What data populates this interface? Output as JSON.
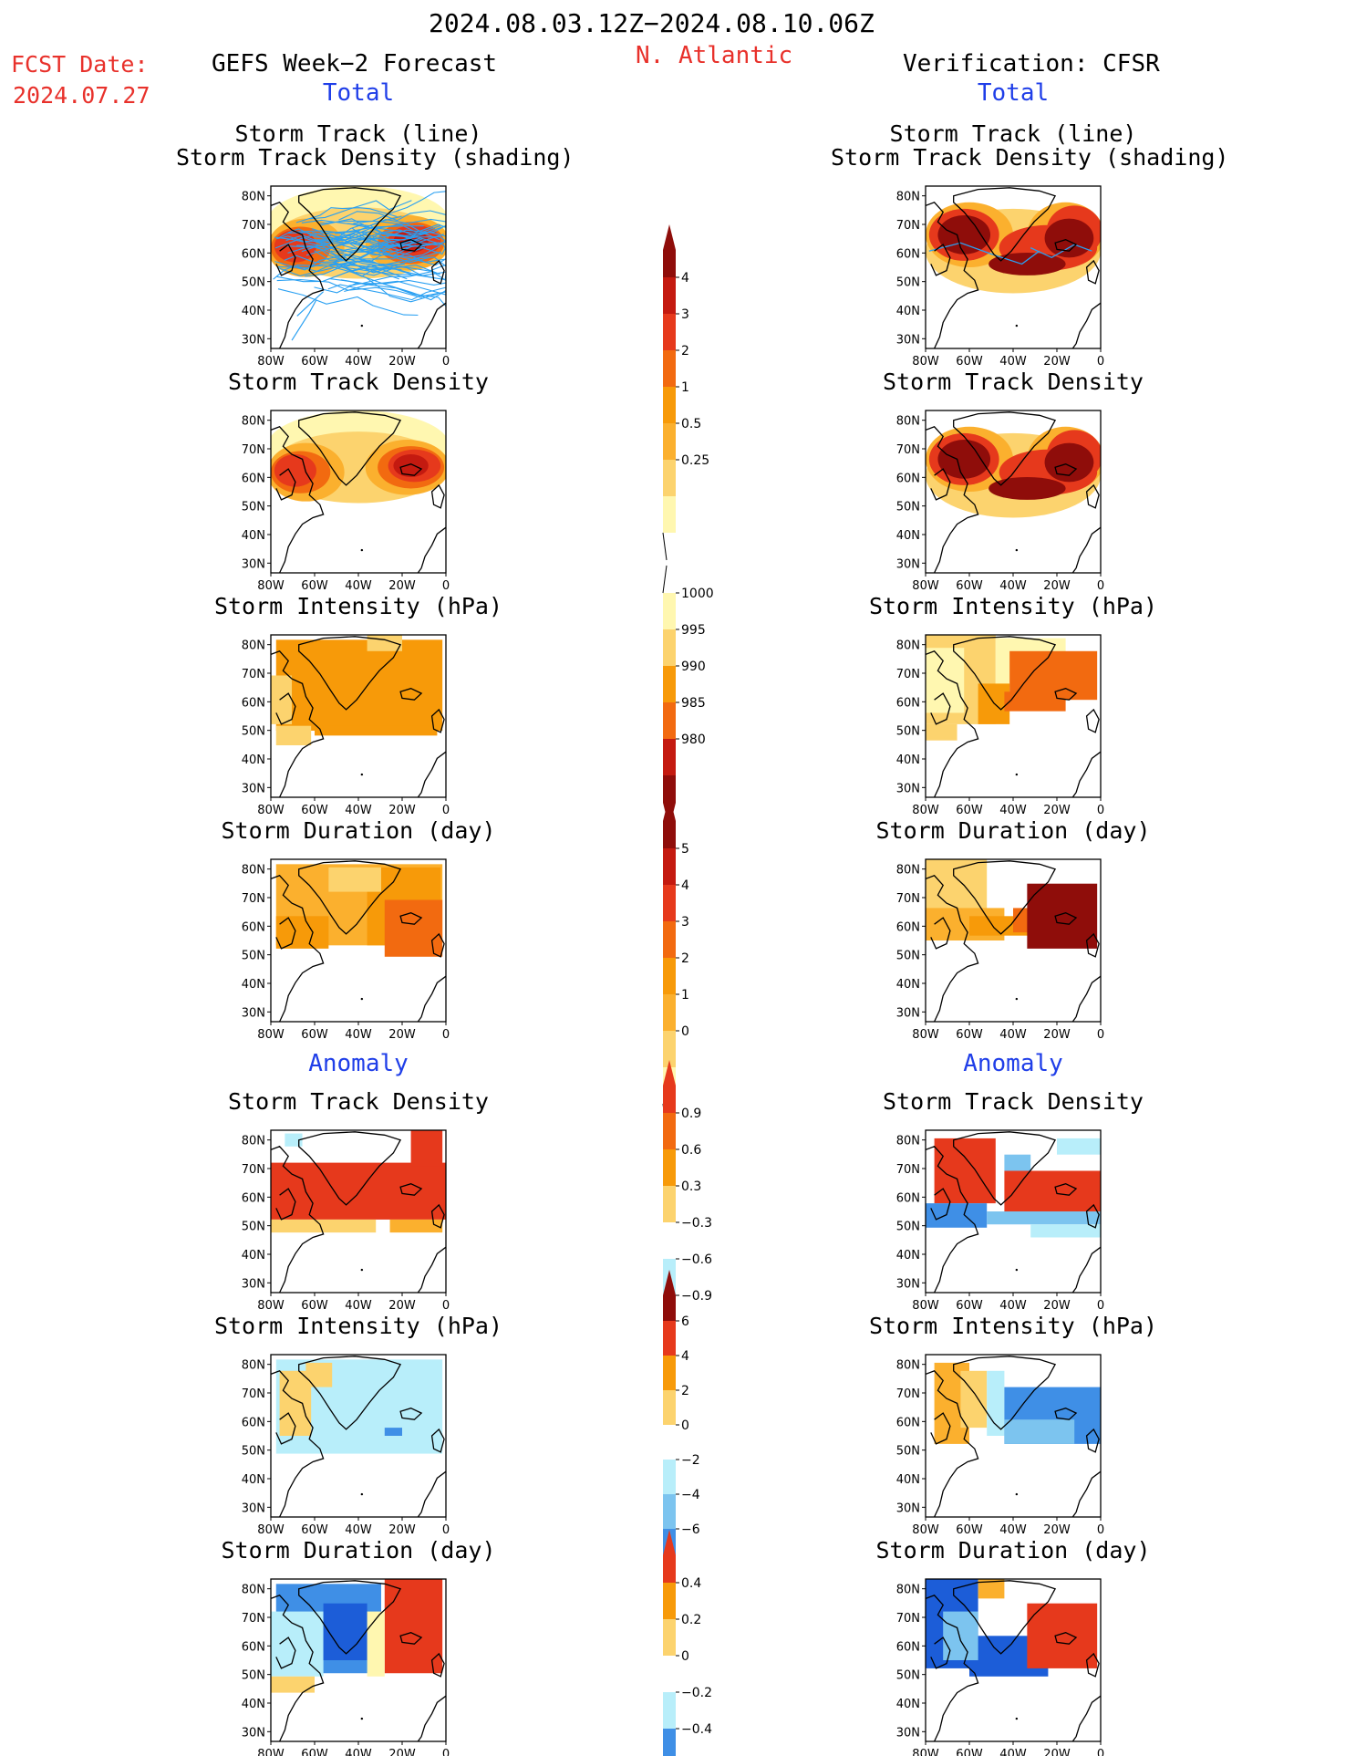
{
  "header": {
    "period": "2024.08.03.12Z−2024.08.10.06Z",
    "region": "N. Atlantic",
    "fcst_label": "FCST Date:",
    "fcst_date": "2024.07.27",
    "left_title": "GEFS Week−2 Forecast",
    "right_title": "Verification: CFSR",
    "total_label": "Total",
    "anomaly_label": "Anomaly"
  },
  "panel_titles": {
    "track_line": "Storm Track (line)",
    "track_shading": "Storm Track Density (shading)",
    "density": "Storm Track Density",
    "intensity": "Storm Intensity (hPa)",
    "duration": "Storm Duration (day)"
  },
  "axes": {
    "lat_ticks": [
      "80N",
      "70N",
      "60N",
      "50N",
      "40N",
      "30N"
    ],
    "lon_ticks": [
      "80W",
      "60W",
      "40W",
      "20W",
      "0"
    ]
  },
  "colors": {
    "c1": "#fff7b0",
    "c2": "#fcd36e",
    "c3": "#fbb02e",
    "c4": "#f79a09",
    "c5": "#f26a10",
    "c6": "#e6391c",
    "c7": "#c41a10",
    "c8": "#8f0d0a",
    "cold1": "#b8eefa",
    "cold2": "#7cc4ef",
    "cold3": "#3f8fe6",
    "cold4": "#1c5dd8",
    "track": "#2aa0f2",
    "red_text": "#e8312b",
    "blue_text": "#1f3ee8"
  },
  "colorbars": [
    {
      "name": "total-density",
      "labels": [
        "4",
        "3",
        "2",
        "1",
        "0.5",
        "0.25"
      ]
    },
    {
      "name": "total-intensity",
      "labels": [
        "1000",
        "995",
        "990",
        "985",
        "980"
      ]
    },
    {
      "name": "total-duration",
      "labels": [
        "5",
        "4",
        "3",
        "2",
        "1",
        "0"
      ]
    },
    {
      "name": "anomaly-density",
      "labels": [
        "0.9",
        "0.6",
        "0.3",
        "−0.3",
        "−0.6",
        "−0.9"
      ]
    },
    {
      "name": "anomaly-intensity",
      "labels": [
        "6",
        "4",
        "2",
        "0",
        "−2",
        "−4",
        "−6"
      ]
    },
    {
      "name": "anomaly-duration",
      "labels": [
        "0.4",
        "0.2",
        "0",
        "−0.2",
        "−0.4"
      ]
    }
  ],
  "chart_data": [
    {
      "type": "heatmap",
      "panel": "GEFS total storm track + density",
      "lat_range": [
        25,
        85
      ],
      "lon_range": [
        -80,
        0
      ]
    },
    {
      "type": "heatmap",
      "panel": "CFSR total storm track + density",
      "lat_range": [
        25,
        85
      ],
      "lon_range": [
        -80,
        0
      ]
    },
    {
      "type": "heatmap",
      "panel": "GEFS total storm track density",
      "lat_range": [
        25,
        85
      ],
      "lon_range": [
        -80,
        0
      ]
    },
    {
      "type": "heatmap",
      "panel": "CFSR total storm track density",
      "lat_range": [
        25,
        85
      ],
      "lon_range": [
        -80,
        0
      ]
    },
    {
      "type": "heatmap",
      "panel": "GEFS total storm intensity",
      "units": "hPa"
    },
    {
      "type": "heatmap",
      "panel": "CFSR total storm intensity",
      "units": "hPa"
    },
    {
      "type": "heatmap",
      "panel": "GEFS total storm duration",
      "units": "day"
    },
    {
      "type": "heatmap",
      "panel": "CFSR total storm duration",
      "units": "day"
    },
    {
      "type": "heatmap",
      "panel": "GEFS anomaly storm track density"
    },
    {
      "type": "heatmap",
      "panel": "CFSR anomaly storm track density"
    },
    {
      "type": "heatmap",
      "panel": "GEFS anomaly storm intensity",
      "units": "hPa"
    },
    {
      "type": "heatmap",
      "panel": "CFSR anomaly storm intensity",
      "units": "hPa"
    },
    {
      "type": "heatmap",
      "panel": "GEFS anomaly storm duration",
      "units": "day"
    },
    {
      "type": "heatmap",
      "panel": "CFSR anomaly storm duration",
      "units": "day"
    }
  ]
}
